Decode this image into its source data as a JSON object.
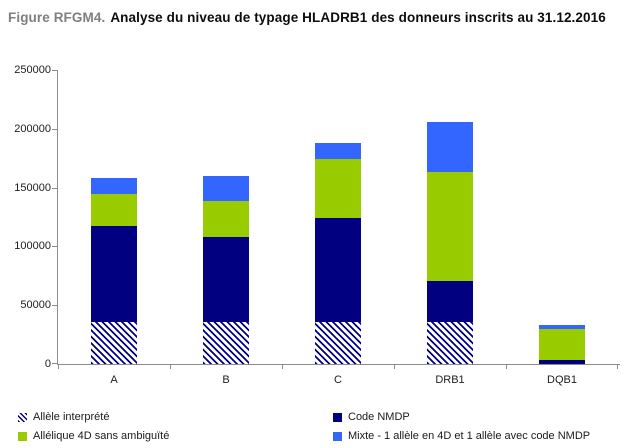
{
  "title": {
    "prefix": "Figure RFGM4.",
    "text": "Analyse du niveau de typage HLADRB1 des donneurs inscrits au 31.12.2016"
  },
  "colors": {
    "navy": "#000080",
    "green": "#99CC00",
    "blue": "#3366FF",
    "axis": "#8c8c8c",
    "title_prefix_gray": "#7f7f7f"
  },
  "chart_data": {
    "type": "bar",
    "stacked": true,
    "title": "Analyse du niveau de typage HLADRB1 des donneurs inscrits au 31.12.2016",
    "categories": [
      "A",
      "B",
      "C",
      "DRB1",
      "DQB1"
    ],
    "series": [
      {
        "name": "Allèle interprété",
        "style": "hatched",
        "color": "#000080",
        "values": [
          35500,
          35500,
          36000,
          35500,
          0
        ]
      },
      {
        "name": "Code NMDP",
        "color": "#000080",
        "values": [
          81500,
          72500,
          88000,
          35500,
          3000
        ]
      },
      {
        "name": "Allélique 4D sans ambiguïté",
        "color": "#99CC00",
        "values": [
          28000,
          30500,
          50000,
          92000,
          26500
        ]
      },
      {
        "name": "Mixte - 1 allèle en 4D et 1 allèle avec code NMDP",
        "color": "#3366FF",
        "values": [
          13000,
          21500,
          14000,
          42500,
          4000
        ]
      }
    ],
    "xlabel": "",
    "ylabel": "",
    "ylim": [
      0,
      250000
    ],
    "yticks": [
      0,
      50000,
      100000,
      150000,
      200000,
      250000
    ],
    "grid": false,
    "legend_position": "bottom"
  },
  "legend": {
    "items": [
      {
        "label": "Allèle interprété",
        "swatch": "hatch"
      },
      {
        "label": "Code NMDP",
        "swatch": "#000080"
      },
      {
        "label": "Allélique 4D sans ambiguïté",
        "swatch": "#99CC00"
      },
      {
        "label": "Mixte - 1 allèle en 4D et 1 allèle avec code NMDP",
        "swatch": "#3366FF"
      }
    ]
  }
}
